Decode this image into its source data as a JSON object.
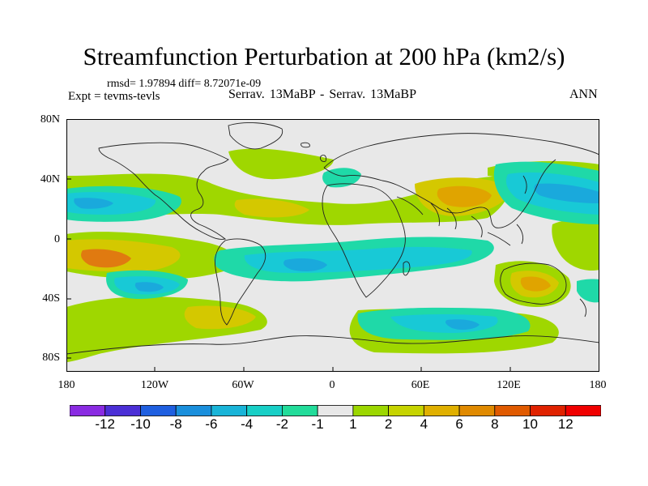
{
  "title": "Streamfunction Perturbation at 200 hPa (km2/s)",
  "stats": "rmsd= 1.97894 diff= 8.72071e-09",
  "expt": "Expt = tevms-tevls",
  "case": "Serrav.  13MaBP - Serrav.  13MaBP",
  "season": "ANN",
  "lat_ticks": [
    "80N",
    "40N",
    "0",
    "40S",
    "80S"
  ],
  "lon_ticks": [
    "180",
    "120W",
    "60W",
    "0",
    "60E",
    "120E",
    "180"
  ],
  "colorbar": {
    "labels": [
      "-12",
      "-10",
      "-8",
      "-6",
      "-4",
      "-2",
      "-1",
      "1",
      "2",
      "4",
      "6",
      "8",
      "10",
      "12"
    ],
    "colors": [
      "#8a2be2",
      "#4b2fd6",
      "#1f5fe0",
      "#1a8fdc",
      "#19b4d8",
      "#18cfc6",
      "#22dc9a",
      "#e8e8e8",
      "#9cd700",
      "#c6d400",
      "#e0b000",
      "#e08a00",
      "#e05a00",
      "#e02200",
      "#f00000"
    ]
  },
  "colors": {
    "background": "#e8e8e8",
    "neg_light": "#1fd9a8",
    "neg_mid": "#18c9d6",
    "neg_strong": "#1aa9dc",
    "pos_light": "#9fd700",
    "pos_mid": "#d4c800",
    "pos_strong": "#e0a400",
    "pos_max": "#e07a10"
  }
}
